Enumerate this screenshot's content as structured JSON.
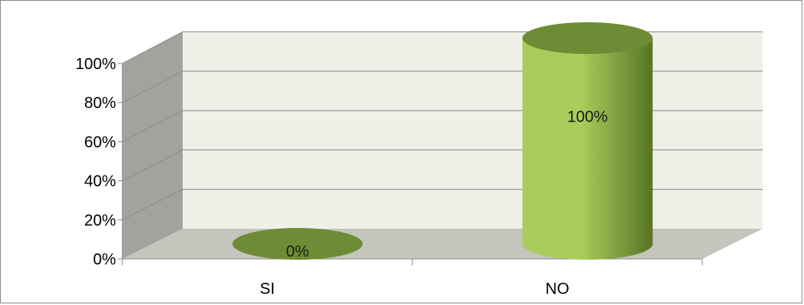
{
  "chart_data": {
    "type": "bar",
    "style": "3d-cylinder",
    "categories": [
      "SI",
      "NO"
    ],
    "values": [
      0,
      100
    ],
    "data_labels": [
      "0%",
      "100%"
    ],
    "ylim": [
      0,
      100
    ],
    "y_ticks": [
      0,
      20,
      40,
      60,
      80,
      100
    ],
    "y_tick_labels": [
      "0%",
      "20%",
      "40%",
      "60%",
      "80%",
      "100%"
    ],
    "grid": true,
    "legend": "none",
    "colors": {
      "bar_top": "#6e8c35",
      "bar_body_light": "#a9cd5c",
      "bar_body_dark": "#587424",
      "back_wall": "#eef1e8",
      "side_wall": "#a3a39d",
      "floor": "#c4c5bd",
      "gridline": "#8a8a8a"
    }
  }
}
